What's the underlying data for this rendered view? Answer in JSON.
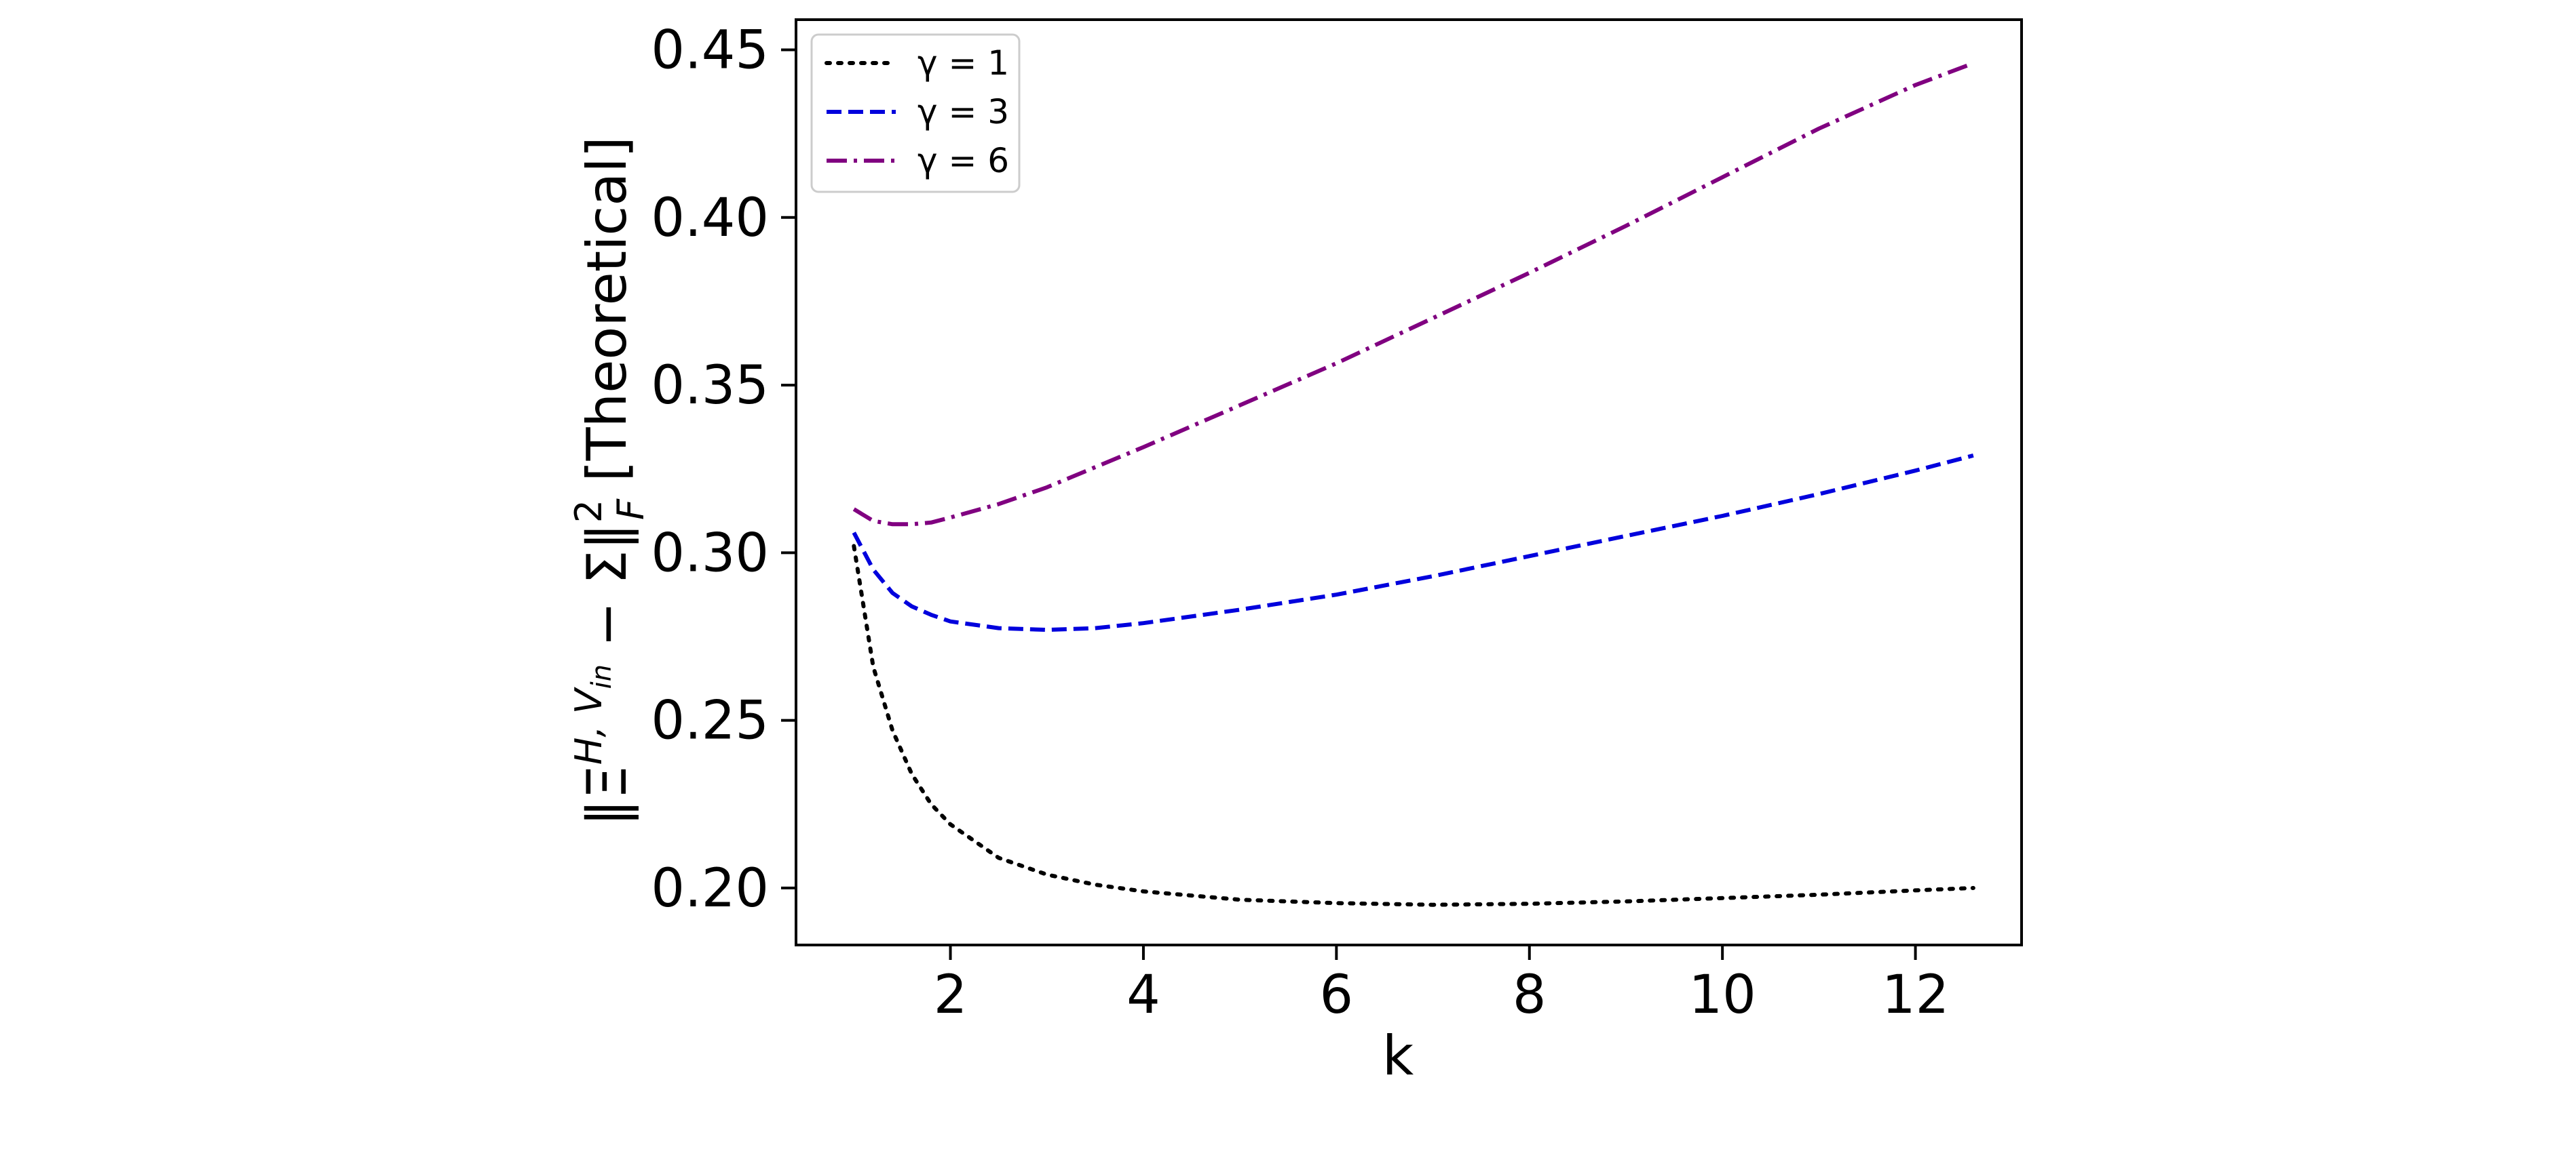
{
  "chart_data": {
    "type": "line",
    "title": "",
    "xlabel": "k",
    "ylabel": "‖Ξ^{H, V_in} − Σ‖_F^2 [Theoretical]",
    "ylabel_parts": {
      "open": "‖Ξ",
      "sup": "H, V",
      "sup_sub": "in",
      "mid": " − Σ‖",
      "sup2": "2",
      "sub2": "F",
      "tail": " [Theoretical]"
    },
    "xlim": [
      0.4,
      13.1
    ],
    "ylim": [
      0.183,
      0.459
    ],
    "xticks": [
      2,
      4,
      6,
      8,
      10,
      12
    ],
    "xtick_labels": [
      "2",
      "4",
      "6",
      "8",
      "10",
      "12"
    ],
    "yticks": [
      0.2,
      0.25,
      0.3,
      0.35,
      0.4,
      0.45
    ],
    "ytick_labels": [
      "0.20",
      "0.25",
      "0.30",
      "0.35",
      "0.40",
      "0.45"
    ],
    "grid": false,
    "legend_position": "top-left",
    "series": [
      {
        "name": "γ = 1",
        "color": "#000000",
        "style": "dotted",
        "x": [
          1.0,
          1.2,
          1.4,
          1.6,
          1.8,
          2.0,
          2.5,
          3.0,
          3.5,
          4.0,
          5.0,
          6.0,
          7.0,
          8.0,
          9.0,
          10.0,
          11.0,
          12.0,
          12.6
        ],
        "y": [
          0.302,
          0.266,
          0.247,
          0.234,
          0.225,
          0.219,
          0.209,
          0.204,
          0.201,
          0.199,
          0.1965,
          0.1955,
          0.195,
          0.1953,
          0.196,
          0.197,
          0.198,
          0.1993,
          0.2
        ]
      },
      {
        "name": "γ = 3",
        "color": "#0000dd",
        "style": "dashed",
        "x": [
          1.0,
          1.2,
          1.4,
          1.6,
          1.8,
          2.0,
          2.5,
          3.0,
          3.5,
          4.0,
          5.0,
          6.0,
          7.0,
          8.0,
          9.0,
          10.0,
          11.0,
          12.0,
          12.6
        ],
        "y": [
          0.306,
          0.295,
          0.288,
          0.284,
          0.2815,
          0.2795,
          0.2775,
          0.277,
          0.2775,
          0.279,
          0.283,
          0.2875,
          0.293,
          0.299,
          0.305,
          0.311,
          0.3175,
          0.3245,
          0.329
        ]
      },
      {
        "name": "γ = 6",
        "color": "#800080",
        "style": "dashdot",
        "x": [
          1.0,
          1.2,
          1.4,
          1.6,
          1.8,
          2.0,
          2.5,
          3.0,
          3.5,
          4.0,
          5.0,
          6.0,
          7.0,
          8.0,
          9.0,
          10.0,
          11.0,
          12.0,
          12.6
        ],
        "y": [
          0.313,
          0.3095,
          0.3085,
          0.3085,
          0.309,
          0.3105,
          0.3145,
          0.3195,
          0.3255,
          0.3315,
          0.344,
          0.3565,
          0.37,
          0.3835,
          0.3975,
          0.412,
          0.4265,
          0.4395,
          0.446
        ]
      }
    ]
  }
}
